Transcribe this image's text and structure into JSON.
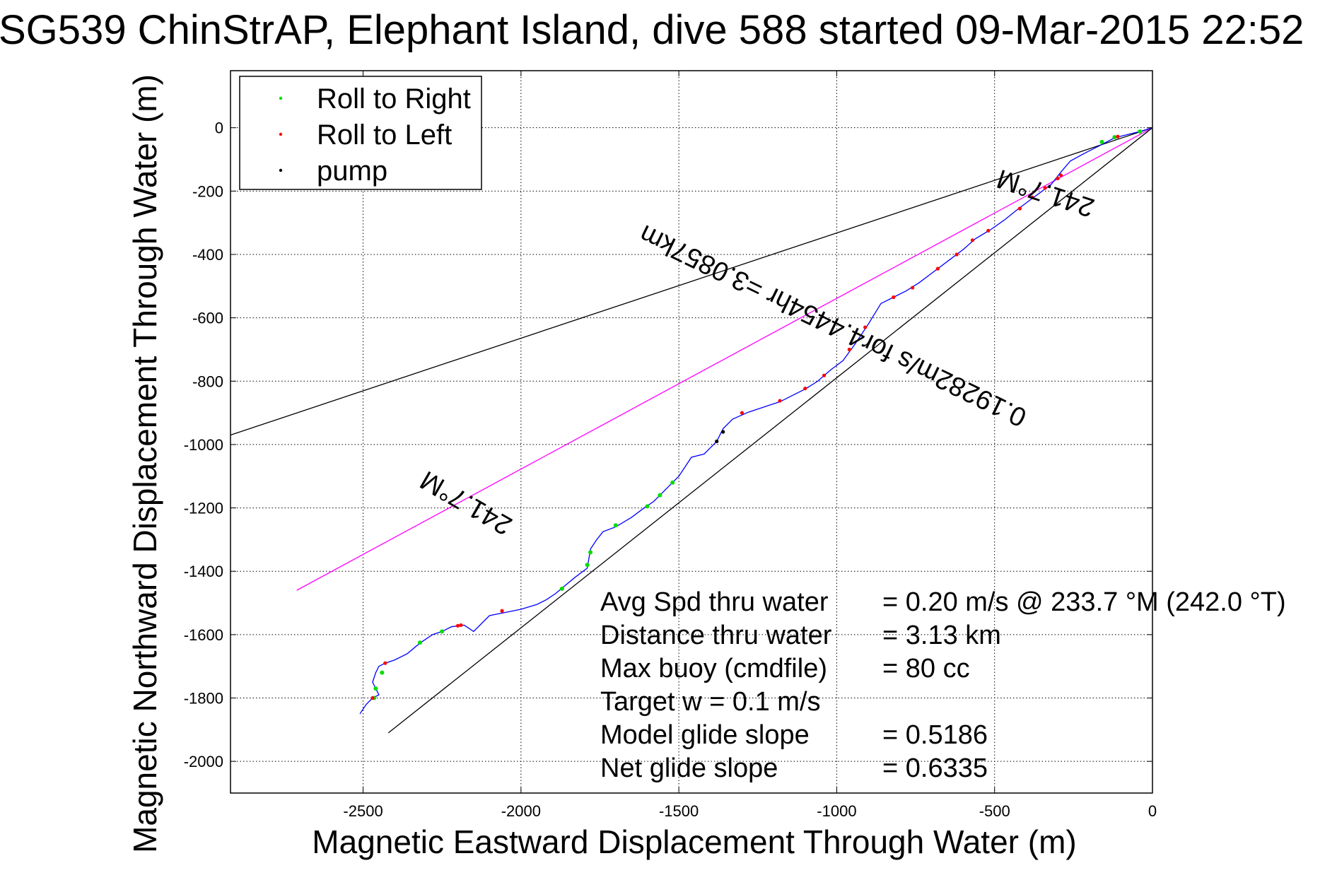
{
  "chart_data": {
    "type": "line",
    "title": "SG539 ChinStrAP, Elephant Island, dive 588 started 09-Mar-2015 22:52",
    "xlabel": "Magnetic Eastward Displacement Through Water (m)",
    "ylabel": "Magnetic Northward Displacement Through Water (m)",
    "xlim": [
      -2920,
      0
    ],
    "ylim": [
      -2100,
      180
    ],
    "xticks": [
      -2500,
      -2000,
      -1500,
      -1000,
      -500,
      0
    ],
    "yticks": [
      0,
      -200,
      -400,
      -600,
      -800,
      -1000,
      -1200,
      -1400,
      -1600,
      -1800,
      -2000
    ],
    "grid": true,
    "legend_position": "top-left",
    "legend": [
      {
        "name": "Roll to Right",
        "color": "#00dd00"
      },
      {
        "name": "Roll to Left",
        "color": "#ff0000"
      },
      {
        "name": "pump",
        "color": "#000000"
      }
    ],
    "track": {
      "name": "glider track",
      "color": "#0000ff",
      "points": [
        [
          0,
          0
        ],
        [
          -40,
          -12
        ],
        [
          -80,
          -22
        ],
        [
          -120,
          -32
        ],
        [
          -170,
          -58
        ],
        [
          -210,
          -78
        ],
        [
          -260,
          -105
        ],
        [
          -290,
          -140
        ],
        [
          -320,
          -178
        ],
        [
          -360,
          -208
        ],
        [
          -390,
          -230
        ],
        [
          -430,
          -260
        ],
        [
          -470,
          -292
        ],
        [
          -510,
          -320
        ],
        [
          -560,
          -350
        ],
        [
          -600,
          -385
        ],
        [
          -640,
          -415
        ],
        [
          -700,
          -460
        ],
        [
          -740,
          -490
        ],
        [
          -780,
          -515
        ],
        [
          -820,
          -535
        ],
        [
          -860,
          -555
        ],
        [
          -900,
          -620
        ],
        [
          -940,
          -680
        ],
        [
          -980,
          -735
        ],
        [
          -1020,
          -765
        ],
        [
          -1060,
          -800
        ],
        [
          -1100,
          -825
        ],
        [
          -1140,
          -845
        ],
        [
          -1180,
          -865
        ],
        [
          -1220,
          -878
        ],
        [
          -1280,
          -898
        ],
        [
          -1330,
          -920
        ],
        [
          -1360,
          -950
        ],
        [
          -1380,
          -990
        ],
        [
          -1420,
          -1030
        ],
        [
          -1460,
          -1040
        ],
        [
          -1500,
          -1100
        ],
        [
          -1540,
          -1140
        ],
        [
          -1580,
          -1180
        ],
        [
          -1610,
          -1200
        ],
        [
          -1650,
          -1230
        ],
        [
          -1700,
          -1260
        ],
        [
          -1740,
          -1275
        ],
        [
          -1760,
          -1300
        ],
        [
          -1780,
          -1330
        ],
        [
          -1790,
          -1390
        ],
        [
          -1830,
          -1420
        ],
        [
          -1860,
          -1445
        ],
        [
          -1890,
          -1470
        ],
        [
          -1920,
          -1490
        ],
        [
          -1950,
          -1505
        ],
        [
          -2000,
          -1520
        ],
        [
          -2050,
          -1530
        ],
        [
          -2100,
          -1540
        ],
        [
          -2150,
          -1590
        ],
        [
          -2180,
          -1570
        ],
        [
          -2220,
          -1575
        ],
        [
          -2250,
          -1590
        ],
        [
          -2280,
          -1600
        ],
        [
          -2310,
          -1620
        ],
        [
          -2330,
          -1635
        ],
        [
          -2360,
          -1660
        ],
        [
          -2400,
          -1680
        ],
        [
          -2430,
          -1690
        ],
        [
          -2450,
          -1700
        ],
        [
          -2460,
          -1720
        ],
        [
          -2470,
          -1750
        ],
        [
          -2450,
          -1790
        ],
        [
          -2470,
          -1800
        ],
        [
          -2490,
          -1820
        ],
        [
          -2510,
          -1850
        ]
      ]
    },
    "roll_right_points": [
      [
        -40,
        -12
      ],
      [
        -120,
        -30
      ],
      [
        -160,
        -45
      ],
      [
        -1520,
        -1120
      ],
      [
        -1560,
        -1160
      ],
      [
        -1600,
        -1195
      ],
      [
        -1700,
        -1255
      ],
      [
        -1780,
        -1340
      ],
      [
        -1790,
        -1380
      ],
      [
        -1870,
        -1455
      ],
      [
        -2250,
        -1590
      ],
      [
        -2320,
        -1625
      ],
      [
        -2440,
        -1720
      ],
      [
        -2460,
        -1770
      ],
      [
        -2465,
        -1800
      ]
    ],
    "roll_left_points": [
      [
        -110,
        -28
      ],
      [
        -290,
        -150
      ],
      [
        -300,
        -160
      ],
      [
        -340,
        -190
      ],
      [
        -380,
        -220
      ],
      [
        -420,
        -255
      ],
      [
        -520,
        -325
      ],
      [
        -570,
        -355
      ],
      [
        -620,
        -400
      ],
      [
        -680,
        -445
      ],
      [
        -760,
        -505
      ],
      [
        -820,
        -535
      ],
      [
        -910,
        -630
      ],
      [
        -960,
        -700
      ],
      [
        -1040,
        -782
      ],
      [
        -1100,
        -823
      ],
      [
        -1180,
        -862
      ],
      [
        -1300,
        -900
      ],
      [
        -2060,
        -1525
      ],
      [
        -2190,
        -1570
      ],
      [
        -2200,
        -1572
      ],
      [
        -2430,
        -1690
      ],
      [
        -2470,
        -1800
      ]
    ],
    "pump_points": [
      [
        -1360,
        -960
      ],
      [
        -1380,
        -990
      ]
    ],
    "guide_lines": [
      {
        "name": "heading-line-upper",
        "color": "#000000",
        "points": [
          [
            0,
            0
          ],
          [
            -2920,
            -970
          ]
        ]
      },
      {
        "name": "heading-line-mean",
        "color": "#ff00ff",
        "points": [
          [
            0,
            0
          ],
          [
            -2710,
            -1460
          ]
        ]
      },
      {
        "name": "heading-line-lower",
        "color": "#000000",
        "points": [
          [
            0,
            0
          ],
          [
            -2420,
            -1910
          ]
        ]
      }
    ],
    "annotations": [
      {
        "text": "241.7°M",
        "x": -330,
        "y": -180,
        "rotation": 198
      },
      {
        "text": "0.19282m/s for4.4454hr =3.0857km",
        "x": -1000,
        "y": -600,
        "rotation": 206
      },
      {
        "text": "241.7°M",
        "x": -2160,
        "y": -1160,
        "rotation": 210
      }
    ],
    "stats": [
      {
        "label": "Avg Spd thru water",
        "value": "=  0.20 m/s @ 233.7 °M (242.0 °T)"
      },
      {
        "label": "Distance thru water",
        "value": "=  3.13 km"
      },
      {
        "label": "Max buoy (cmdfile)",
        "value": "= 80 cc"
      },
      {
        "label": "Target w    = 0.1 m/s",
        "value": ""
      },
      {
        "label": "Model glide slope",
        "value": "= 0.5186"
      },
      {
        "label": "Net glide slope",
        "value": "= 0.6335"
      }
    ]
  }
}
